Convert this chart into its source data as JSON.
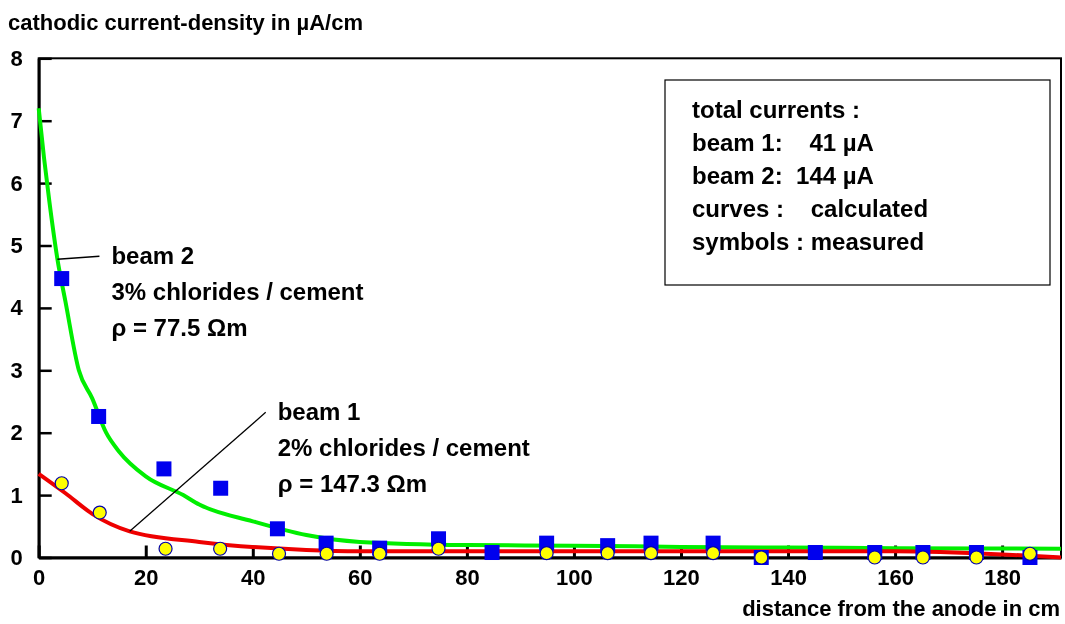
{
  "chart_data": {
    "type": "scatter",
    "title": "cathodic current-density in µA/cm",
    "xlabel": "distance from the anode in cm",
    "xlim": [
      0,
      191
    ],
    "ylim": [
      0,
      8
    ],
    "xticks": [
      0,
      20,
      40,
      60,
      80,
      100,
      120,
      140,
      160,
      180
    ],
    "yticks": [
      0,
      1,
      2,
      3,
      4,
      5,
      6,
      7,
      8
    ],
    "grid": false,
    "series": [
      {
        "type": "line",
        "color": "#00ee00",
        "marker": "none",
        "line_style": "solid",
        "x": [
          0,
          1,
          2,
          3.5,
          5,
          7.5,
          10,
          12.6,
          15,
          20,
          27,
          30,
          40,
          50,
          60,
          80,
          100,
          120,
          140,
          160,
          191
        ],
        "values": [
          7.2,
          6.4,
          5.7,
          4.78,
          4.1,
          3,
          2.55,
          2,
          1.7,
          1.3,
          1,
          0.85,
          0.58,
          0.36,
          0.25,
          0.2,
          0.19,
          0.17,
          0.16,
          0.15,
          0.14
        ]
      },
      {
        "type": "line",
        "color": "#ee0000",
        "marker": "none",
        "line_style": "solid",
        "x": [
          0,
          5,
          10,
          17,
          30,
          50,
          60,
          100,
          140,
          160,
          180,
          191
        ],
        "values": [
          1.34,
          1.03,
          0.7,
          0.42,
          0.25,
          0.12,
          0.1,
          0.1,
          0.1,
          0.1,
          0.05,
          0
        ]
      },
      {
        "color": "#0000ee",
        "marker": "square",
        "x": [
          4.3,
          11.2,
          23.4,
          34,
          44.6,
          53.7,
          63.7,
          74.7,
          84.7,
          94.9,
          106.3,
          114.4,
          126,
          135,
          145.1,
          156.2,
          165.2,
          175.2,
          185.2
        ],
        "values": [
          4.47,
          2.26,
          1.42,
          1.11,
          0.46,
          0.23,
          0.15,
          0.3,
          0.08,
          0.23,
          0.19,
          0.23,
          0.23,
          0,
          0.08,
          0.08,
          0.08,
          0.08,
          0
        ]
      },
      {
        "color": "#ffff00",
        "marker": "circle",
        "x": [
          4.3,
          11.4,
          23.7,
          33.9,
          44.9,
          53.8,
          63.7,
          74.7,
          94.9,
          106.3,
          114.4,
          126,
          135,
          156.2,
          165.2,
          175.2,
          185.2
        ],
        "values": [
          1.19,
          0.72,
          0.14,
          0.14,
          0.06,
          0.06,
          0.06,
          0.14,
          0.07,
          0.07,
          0.07,
          0.07,
          0,
          0,
          0,
          0,
          0.06
        ]
      }
    ],
    "annotations": [
      {
        "text": "beam 2\n3% chlorides / cement\nρ = 77.5 Ωm",
        "x": 3.5,
        "y": 4.78
      },
      {
        "text": "beam 1\n2% chlorides / cement\nρ = 147.3 Ωm",
        "x": 17,
        "y": 0.42
      },
      "total currents :\nbeam 1:    41 µA\nbeam 2:  144 µA\ncurves :    calculated\nsymbols : measured"
    ]
  }
}
